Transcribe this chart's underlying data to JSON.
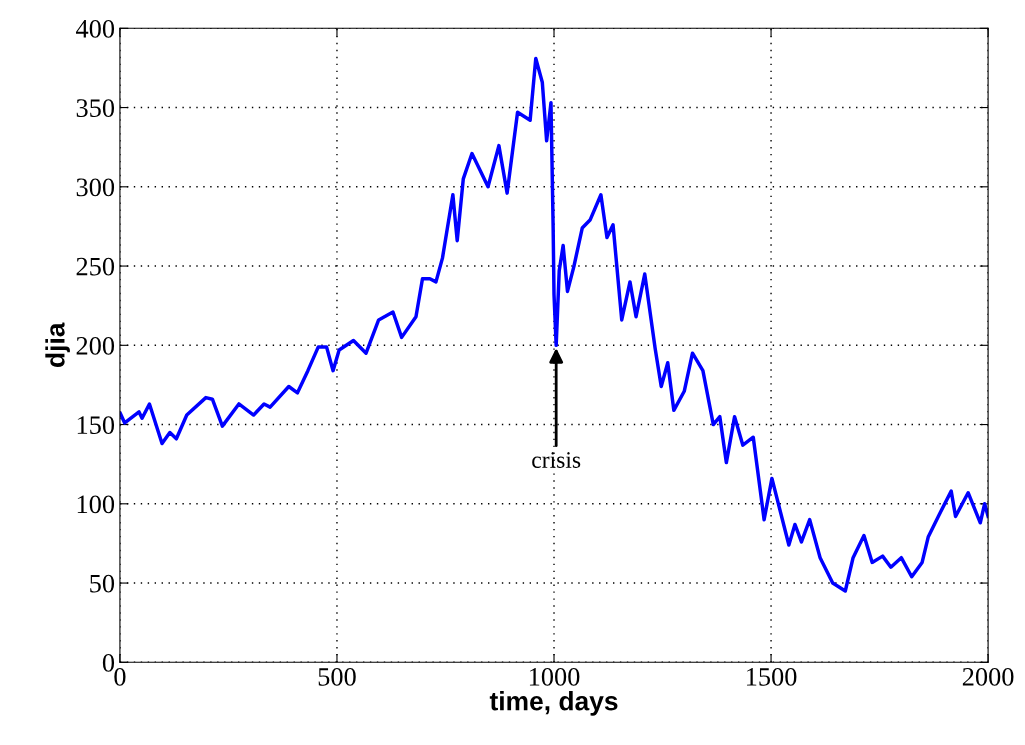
{
  "chart_data": {
    "type": "line",
    "xlabel": "time, days",
    "ylabel": "djia",
    "xlim": [
      0,
      2000
    ],
    "xticks": [
      0,
      500,
      1000,
      1500,
      2000
    ],
    "ylim": [
      0,
      400
    ],
    "yticks": [
      0,
      50,
      100,
      150,
      200,
      250,
      300,
      350,
      400
    ],
    "grid": true,
    "line_style": "solid",
    "marker": "none",
    "annotations": [
      {
        "text": "crisis",
        "x": 1005,
        "y": 200
      }
    ],
    "series": [
      {
        "color": "#0000ff",
        "x": [
          1,
          11,
          44,
          51,
          68,
          97,
          115,
          130,
          154,
          198,
          213,
          236,
          274,
          308,
          332,
          346,
          389,
          409,
          433,
          457,
          476,
          491,
          505,
          538,
          567,
          596,
          629,
          649,
          682,
          697,
          714,
          728,
          743,
          767,
          777,
          791,
          811,
          848,
          873,
          892,
          916,
          945,
          958,
          973,
          983,
          993,
          998,
          1000,
          1005,
          1012,
          1021,
          1031,
          1046,
          1065,
          1083,
          1108,
          1122,
          1136,
          1156,
          1175,
          1189,
          1209,
          1233,
          1247,
          1262,
          1276,
          1300,
          1319,
          1343,
          1367,
          1382,
          1397,
          1416,
          1435,
          1459,
          1484,
          1502,
          1541,
          1555,
          1570,
          1589,
          1613,
          1642,
          1671,
          1689,
          1714,
          1733,
          1757,
          1776,
          1800,
          1824,
          1848,
          1862,
          1887,
          1915,
          1925,
          1954,
          1982,
          1992,
          2000
        ],
        "values": [
          157,
          151,
          158,
          154,
          163,
          138,
          145,
          141,
          156,
          167,
          166,
          149,
          163,
          156,
          163,
          161,
          174,
          170,
          184,
          199,
          199,
          184,
          197,
          203,
          195,
          216,
          221,
          205,
          218,
          242,
          242,
          240,
          255,
          295,
          266,
          305,
          321,
          300,
          326,
          296,
          347,
          342,
          381,
          366,
          329,
          353,
          274,
          232,
          200,
          247,
          263,
          234,
          250,
          274,
          279,
          295,
          268,
          276,
          216,
          240,
          218,
          245,
          198,
          174,
          189,
          159,
          171,
          195,
          184,
          150,
          155,
          126,
          155,
          137,
          142,
          90,
          116,
          74,
          87,
          76,
          90,
          66,
          50,
          45,
          66,
          80,
          63,
          67,
          60,
          66,
          54,
          63,
          79,
          93,
          108,
          92,
          107,
          88,
          100,
          92
        ]
      }
    ]
  }
}
